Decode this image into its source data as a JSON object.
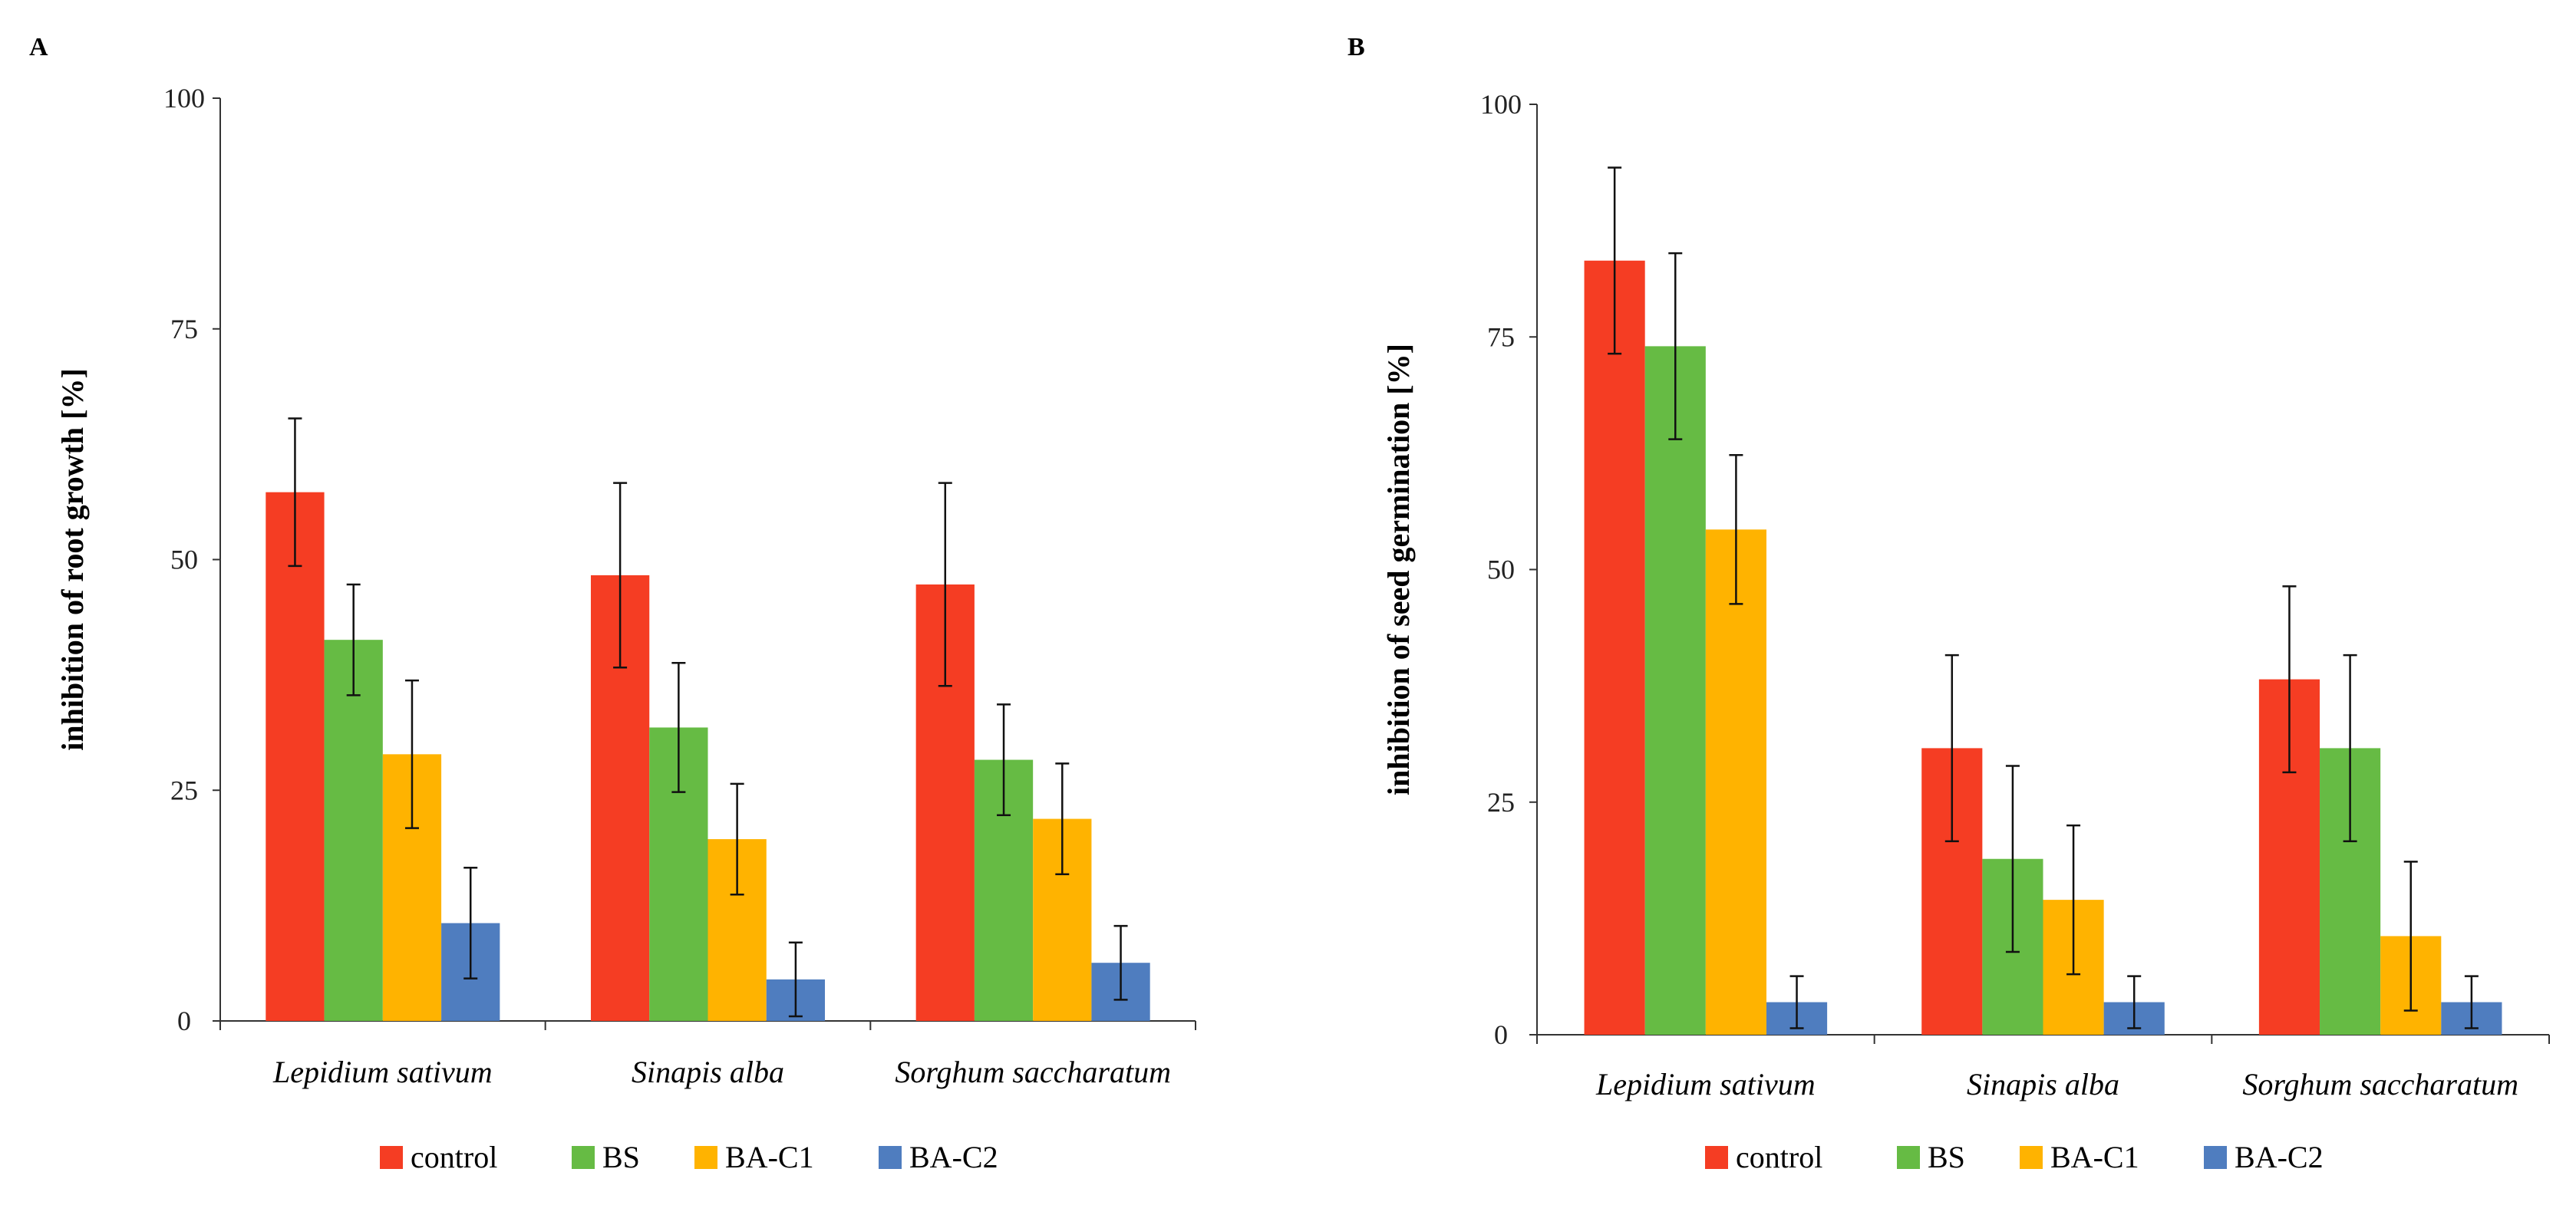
{
  "chart_data": [
    {
      "panel": "A",
      "type": "bar",
      "categories": [
        "Lepidium sativum",
        "Sinapis alba",
        "Sorghum saccharatum"
      ],
      "ylabel": "inhibition of root growth [%]",
      "ylim": [
        0,
        100
      ],
      "yticks": [
        "0",
        "25",
        "50",
        "75",
        "100"
      ],
      "grid": false,
      "legend_position": "bottom",
      "series": [
        {
          "name": "control",
          "color": "#F53D23",
          "values": [
            57.3,
            48.3,
            47.3
          ],
          "errors": [
            8.0,
            10.0,
            11.0
          ]
        },
        {
          "name": "BS",
          "color": "#66BB44",
          "values": [
            41.3,
            31.8,
            28.3
          ],
          "errors": [
            6.0,
            7.0,
            6.0
          ]
        },
        {
          "name": "BA-C1",
          "color": "#FFB300",
          "values": [
            28.9,
            19.7,
            21.9
          ],
          "errors": [
            8.0,
            6.0,
            6.0
          ]
        },
        {
          "name": "BA-C2",
          "color": "#4F7DBF",
          "values": [
            10.6,
            4.5,
            6.3
          ],
          "errors": [
            6.0,
            4.0,
            4.0
          ]
        }
      ]
    },
    {
      "panel": "B",
      "type": "bar",
      "categories": [
        "Lepidium sativum",
        "Sinapis alba",
        "Sorghum saccharatum"
      ],
      "ylabel": "inhibition of seed germination [%]",
      "ylim": [
        0,
        100
      ],
      "yticks": [
        "0",
        "25",
        "50",
        "75",
        "100"
      ],
      "grid": false,
      "legend_position": "bottom",
      "series": [
        {
          "name": "control",
          "color": "#F53D23",
          "values": [
            83.2,
            30.8,
            38.2
          ],
          "errors": [
            10.0,
            10.0,
            10.0
          ]
        },
        {
          "name": "BS",
          "color": "#66BB44",
          "values": [
            74.0,
            18.9,
            30.8
          ],
          "errors": [
            10.0,
            10.0,
            10.0
          ]
        },
        {
          "name": "BA-C1",
          "color": "#FFB300",
          "values": [
            54.3,
            14.5,
            10.6
          ],
          "errors": [
            8.0,
            8.0,
            8.0
          ]
        },
        {
          "name": "BA-C2",
          "color": "#4F7DBF",
          "values": [
            3.5,
            3.5,
            3.5
          ],
          "errors": [
            2.8,
            2.8,
            2.8
          ]
        }
      ]
    }
  ]
}
